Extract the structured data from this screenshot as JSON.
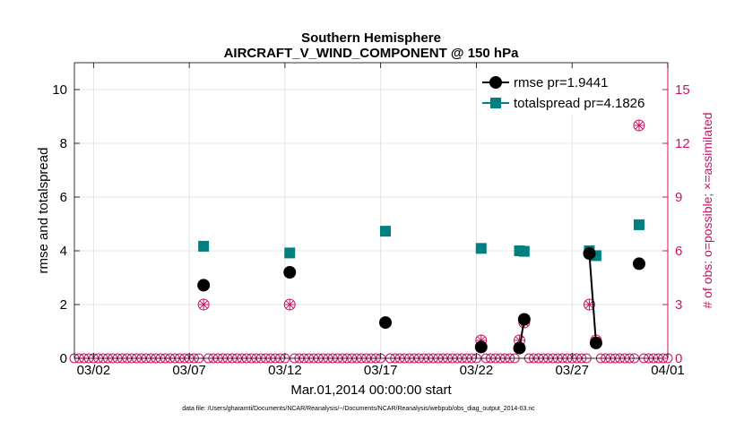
{
  "chart_data": {
    "type": "line",
    "title": "Southern Hemisphere",
    "subtitle": "AIRCRAFT_V_WIND_COMPONENT @ 150 hPa",
    "xlabel": "Mar.01,2014 00:00:00 start",
    "ylabel": "rmse and totalspread",
    "y2label": "# of obs: o=possible; ×=assimilated",
    "footnote": "data file: /Users/gharamti/Documents/NCAR/Reanalysis/~/Documents/NCAR/Reanalysis/webpub/obs_diag_output_2014-03.nc",
    "xlim": [
      1.0,
      32.0
    ],
    "ylim": [
      0,
      11
    ],
    "y2lim": [
      0,
      16.5
    ],
    "x_ticks": [
      2,
      7,
      12,
      17,
      22,
      27,
      32
    ],
    "x_tick_labels": [
      "03/02",
      "03/07",
      "03/12",
      "03/17",
      "03/22",
      "03/27",
      "04/01"
    ],
    "y_ticks": [
      0,
      2,
      4,
      6,
      8,
      10
    ],
    "y_tick_labels": [
      "0",
      "2",
      "4",
      "6",
      "8",
      "10"
    ],
    "y2_ticks": [
      0,
      3,
      6,
      9,
      12,
      15
    ],
    "y2_tick_labels": [
      "0",
      "3",
      "6",
      "9",
      "12",
      "15"
    ],
    "grid": true,
    "legend_position": "top-right",
    "colors": {
      "rmse": "#000000",
      "totalspread": "#008080",
      "obs": "#cc1166"
    },
    "series": [
      {
        "name": "rmse pr=1.9441",
        "axis": "left",
        "marker": "circle",
        "points": [
          [
            7.75,
            2.72
          ],
          [
            12.25,
            3.2
          ],
          [
            17.25,
            1.33
          ],
          [
            22.25,
            0.42
          ],
          [
            24.25,
            0.38
          ],
          [
            24.5,
            1.45
          ],
          [
            27.9,
            3.9
          ],
          [
            28.25,
            0.57
          ],
          [
            30.5,
            3.52
          ]
        ],
        "segments": [
          [
            [
              24.25,
              0.38
            ],
            [
              24.5,
              1.45
            ]
          ],
          [
            [
              27.9,
              3.9
            ],
            [
              28.25,
              0.57
            ]
          ]
        ]
      },
      {
        "name": "totalspread pr=4.1826",
        "axis": "left",
        "marker": "square",
        "points": [
          [
            7.75,
            4.17
          ],
          [
            12.25,
            3.92
          ],
          [
            17.25,
            4.73
          ],
          [
            22.25,
            4.09
          ],
          [
            24.25,
            4.0
          ],
          [
            24.5,
            3.98
          ],
          [
            27.9,
            4.0
          ],
          [
            28.25,
            3.82
          ],
          [
            30.5,
            4.97
          ]
        ],
        "segments": [
          [
            [
              24.25,
              4.0
            ],
            [
              24.5,
              3.98
            ]
          ],
          [
            [
              27.9,
              4.0
            ],
            [
              28.25,
              3.82
            ]
          ]
        ]
      }
    ],
    "obs_counts": {
      "axis": "right",
      "x_start": 1.0,
      "x_step": 0.25,
      "nonzero": [
        [
          7.75,
          3
        ],
        [
          12.25,
          3
        ],
        [
          17.25,
          2
        ],
        [
          22.25,
          1
        ],
        [
          24.25,
          1
        ],
        [
          24.5,
          2
        ],
        [
          27.9,
          3
        ],
        [
          28.25,
          1
        ],
        [
          30.5,
          13
        ]
      ]
    }
  }
}
